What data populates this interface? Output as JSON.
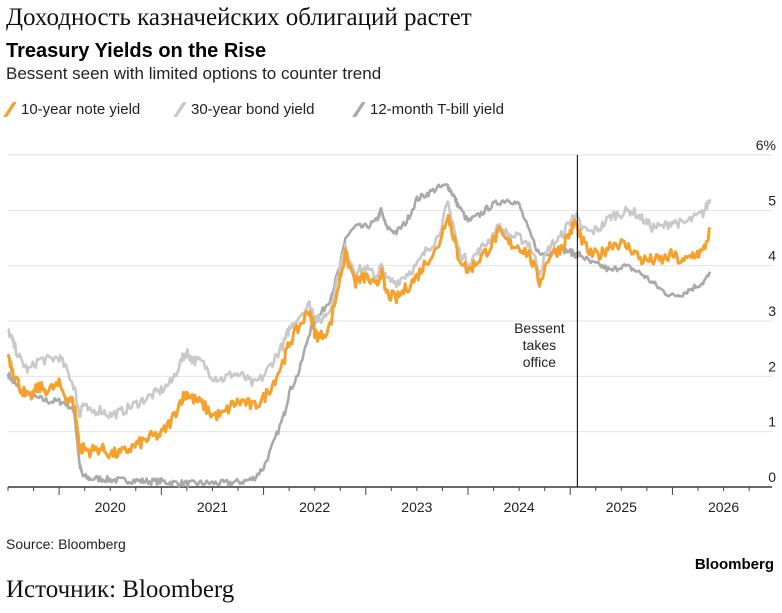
{
  "header": {
    "ru_title": "Доходность казначейских облигаций растет",
    "title": "Treasury Yields on the Rise",
    "subtitle": "Bessent seen with limited options to counter trend"
  },
  "legend": [
    {
      "label": "10-year note yield",
      "color": "#f5a12b"
    },
    {
      "label": "30-year bond yield",
      "color": "#c9c9c9"
    },
    {
      "label": "12-month T-bill yield",
      "color": "#a9a9a9"
    }
  ],
  "footer": {
    "source": "Source: Bloomberg",
    "brand": "Bloomberg",
    "ru_source": "Источник: Bloomberg"
  },
  "chart_data": {
    "type": "line",
    "title": "Treasury Yields on the Rise",
    "subtitle": "Bessent seen with limited options to counter trend",
    "xlabel": "",
    "ylabel": "",
    "x_ticks": [
      "2020",
      "2021",
      "2022",
      "2023",
      "2024",
      "2025",
      "2026"
    ],
    "y_ticks": [
      "0",
      "1",
      "2",
      "3",
      "4",
      "5",
      "6%"
    ],
    "ylim": [
      0,
      6
    ],
    "xlim": [
      2019.5,
      2026.7
    ],
    "grid": "horizontal",
    "legend_position": "top-left",
    "y_axis_side": "right",
    "annotations": [
      {
        "text_lines": [
          "Bessent",
          "takes",
          "office"
        ],
        "x": 2025.07
      }
    ],
    "series": [
      {
        "name": "10-year note yield",
        "color": "#f5a12b",
        "x": [
          2019.5,
          2019.55,
          2019.62,
          2019.7,
          2019.8,
          2019.9,
          2020.0,
          2020.08,
          2020.15,
          2020.2,
          2020.23,
          2020.3,
          2020.4,
          2020.5,
          2020.6,
          2020.7,
          2020.8,
          2020.9,
          2021.0,
          2021.1,
          2021.2,
          2021.25,
          2021.3,
          2021.4,
          2021.5,
          2021.6,
          2021.7,
          2021.8,
          2021.9,
          2022.0,
          2022.1,
          2022.2,
          2022.25,
          2022.35,
          2022.45,
          2022.5,
          2022.55,
          2022.65,
          2022.75,
          2022.8,
          2022.9,
          2023.0,
          2023.1,
          2023.15,
          2023.2,
          2023.3,
          2023.4,
          2023.5,
          2023.6,
          2023.7,
          2023.8,
          2023.85,
          2023.9,
          2024.0,
          2024.1,
          2024.2,
          2024.3,
          2024.4,
          2024.5,
          2024.6,
          2024.7,
          2024.8,
          2024.9,
          2025.0,
          2025.05,
          2025.1,
          2025.2,
          2025.3,
          2025.4,
          2025.5,
          2025.6,
          2025.7,
          2025.8,
          2025.9,
          2026.0,
          2026.1,
          2026.2,
          2026.3,
          2026.37
        ],
        "values": [
          2.4,
          2.1,
          1.8,
          1.6,
          1.8,
          1.75,
          1.85,
          1.6,
          1.5,
          0.7,
          0.7,
          0.65,
          0.7,
          0.6,
          0.6,
          0.7,
          0.8,
          0.9,
          0.95,
          1.2,
          1.6,
          1.7,
          1.6,
          1.5,
          1.3,
          1.3,
          1.5,
          1.55,
          1.45,
          1.6,
          1.9,
          2.3,
          2.6,
          2.9,
          3.2,
          2.8,
          2.7,
          2.9,
          3.8,
          4.2,
          3.7,
          3.8,
          3.6,
          3.9,
          3.5,
          3.4,
          3.6,
          3.8,
          4.1,
          4.3,
          4.95,
          4.6,
          4.2,
          3.9,
          4.1,
          4.3,
          4.6,
          4.4,
          4.35,
          4.2,
          3.7,
          4.2,
          4.3,
          4.6,
          4.8,
          4.5,
          4.2,
          4.2,
          4.4,
          4.4,
          4.3,
          4.1,
          4.1,
          4.1,
          4.2,
          4.05,
          4.2,
          4.25,
          4.65
        ]
      },
      {
        "name": "30-year bond yield",
        "color": "#c9c9c9",
        "x": [
          2019.5,
          2019.55,
          2019.62,
          2019.7,
          2019.8,
          2019.9,
          2020.0,
          2020.08,
          2020.15,
          2020.2,
          2020.23,
          2020.3,
          2020.4,
          2020.5,
          2020.6,
          2020.7,
          2020.8,
          2020.9,
          2021.0,
          2021.1,
          2021.2,
          2021.25,
          2021.3,
          2021.4,
          2021.5,
          2021.6,
          2021.7,
          2021.8,
          2021.9,
          2022.0,
          2022.1,
          2022.2,
          2022.25,
          2022.35,
          2022.45,
          2022.5,
          2022.55,
          2022.65,
          2022.75,
          2022.8,
          2022.9,
          2023.0,
          2023.1,
          2023.15,
          2023.2,
          2023.3,
          2023.4,
          2023.5,
          2023.6,
          2023.7,
          2023.8,
          2023.85,
          2023.9,
          2024.0,
          2024.1,
          2024.2,
          2024.3,
          2024.4,
          2024.5,
          2024.6,
          2024.7,
          2024.8,
          2024.9,
          2025.0,
          2025.05,
          2025.1,
          2025.2,
          2025.3,
          2025.4,
          2025.5,
          2025.6,
          2025.7,
          2025.8,
          2025.9,
          2026.0,
          2026.1,
          2026.2,
          2026.3,
          2026.37
        ],
        "values": [
          2.85,
          2.6,
          2.3,
          2.1,
          2.3,
          2.3,
          2.35,
          2.1,
          1.8,
          1.3,
          1.5,
          1.35,
          1.4,
          1.3,
          1.35,
          1.45,
          1.55,
          1.65,
          1.75,
          1.9,
          2.3,
          2.45,
          2.3,
          2.25,
          2.0,
          1.95,
          2.05,
          2.0,
          1.85,
          2.0,
          2.3,
          2.6,
          2.85,
          3.1,
          3.3,
          3.1,
          3.0,
          3.2,
          4.0,
          4.3,
          3.9,
          3.95,
          3.8,
          4.0,
          3.75,
          3.7,
          3.85,
          4.0,
          4.3,
          4.5,
          5.1,
          4.8,
          4.3,
          4.05,
          4.25,
          4.45,
          4.7,
          4.55,
          4.5,
          4.4,
          3.9,
          4.35,
          4.5,
          4.8,
          4.95,
          4.7,
          4.6,
          4.7,
          4.9,
          4.95,
          5.0,
          4.85,
          4.7,
          4.7,
          4.8,
          4.75,
          4.85,
          4.95,
          5.2
        ]
      },
      {
        "name": "12-month T-bill yield",
        "color": "#a9a9a9",
        "x": [
          2019.5,
          2019.55,
          2019.62,
          2019.7,
          2019.8,
          2019.9,
          2020.0,
          2020.08,
          2020.15,
          2020.2,
          2020.23,
          2020.3,
          2020.4,
          2020.5,
          2020.6,
          2020.7,
          2020.8,
          2020.9,
          2021.0,
          2021.1,
          2021.2,
          2021.3,
          2021.4,
          2021.5,
          2021.6,
          2021.7,
          2021.8,
          2021.9,
          2022.0,
          2022.1,
          2022.2,
          2022.25,
          2022.35,
          2022.45,
          2022.5,
          2022.55,
          2022.65,
          2022.75,
          2022.8,
          2022.9,
          2023.0,
          2023.1,
          2023.15,
          2023.2,
          2023.3,
          2023.4,
          2023.5,
          2023.6,
          2023.7,
          2023.8,
          2023.85,
          2023.9,
          2024.0,
          2024.1,
          2024.2,
          2024.3,
          2024.4,
          2024.5,
          2024.6,
          2024.7,
          2024.8,
          2024.9,
          2025.0,
          2025.05,
          2025.1,
          2025.2,
          2025.3,
          2025.4,
          2025.5,
          2025.6,
          2025.7,
          2025.8,
          2025.9,
          2026.0,
          2026.1,
          2026.2,
          2026.3,
          2026.37
        ],
        "values": [
          2.05,
          1.9,
          1.75,
          1.65,
          1.6,
          1.55,
          1.55,
          1.5,
          1.35,
          0.4,
          0.2,
          0.15,
          0.15,
          0.13,
          0.12,
          0.12,
          0.11,
          0.1,
          0.1,
          0.08,
          0.07,
          0.06,
          0.07,
          0.07,
          0.07,
          0.08,
          0.1,
          0.15,
          0.35,
          0.8,
          1.3,
          1.7,
          2.1,
          2.8,
          3.0,
          3.1,
          3.4,
          4.0,
          4.5,
          4.7,
          4.7,
          4.8,
          5.0,
          4.7,
          4.6,
          4.8,
          5.2,
          5.3,
          5.4,
          5.45,
          5.3,
          5.1,
          4.8,
          4.9,
          5.05,
          5.15,
          5.2,
          5.1,
          4.6,
          4.2,
          4.25,
          4.3,
          4.25,
          4.2,
          4.2,
          4.05,
          4.0,
          3.9,
          4.0,
          3.95,
          3.85,
          3.7,
          3.55,
          3.45,
          3.5,
          3.6,
          3.7,
          3.85
        ]
      }
    ]
  }
}
